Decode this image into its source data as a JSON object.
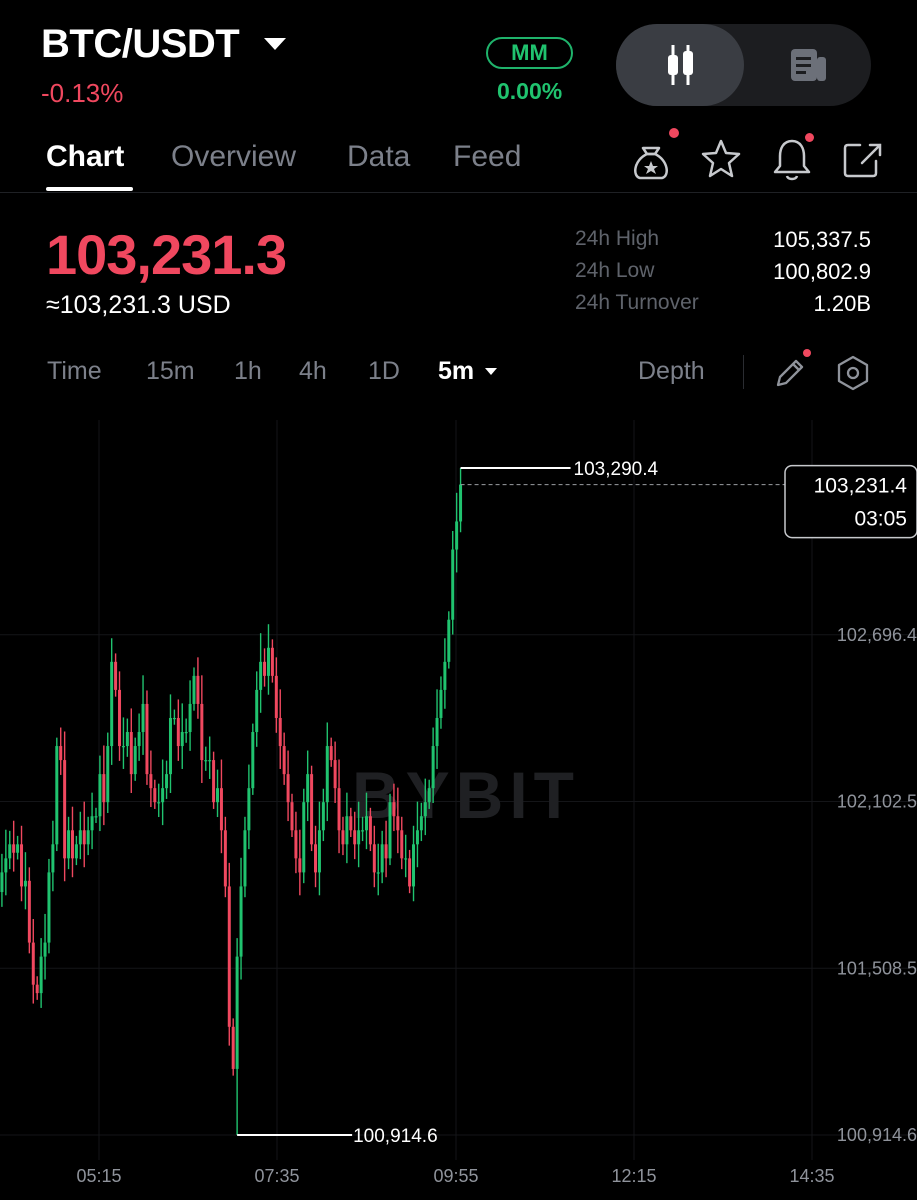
{
  "header": {
    "pair": "BTC/USDT",
    "change": "-0.13%",
    "mm_label": "MM",
    "mm_value": "0.00%"
  },
  "tabs": [
    "Chart",
    "Overview",
    "Data",
    "Feed"
  ],
  "price": {
    "last": "103,231.3",
    "usd": "≈103,231.3 USD"
  },
  "stats": [
    {
      "label": "24h High",
      "value": "105,337.5"
    },
    {
      "label": "24h Low",
      "value": "100,802.9"
    },
    {
      "label": "24h Turnover",
      "value": "1.20B"
    }
  ],
  "timeframes": [
    "Time",
    "15m",
    "1h",
    "4h",
    "1D",
    "5m"
  ],
  "depth_label": "Depth",
  "icons": {
    "toggle_left": "candlestick-icon",
    "toggle_right": "news-icon",
    "actions": [
      "reward-bag-icon",
      "star-icon",
      "bell-icon",
      "share-icon"
    ],
    "tools": [
      "pencil-icon",
      "settings-hex-icon"
    ]
  },
  "colors": {
    "up": "#20c36f",
    "down": "#f0485f",
    "background": "#000000"
  },
  "chart_data": {
    "type": "candlestick",
    "watermark": "BYBIT",
    "x_ticks": [
      "05:15",
      "07:35",
      "09:55",
      "12:15",
      "14:35"
    ],
    "y_ticks": [
      "100,914.6",
      "101,508.5",
      "102,102.5",
      "102,696.4"
    ],
    "ylim": [
      100914.6,
      103290.4
    ],
    "max_marker": "103,290.4",
    "min_marker": "100,914.6",
    "current_price": "103,231.4",
    "countdown": "03:05",
    "closes": [
      101780,
      101850,
      101900,
      101950,
      101920,
      101950,
      101800,
      101820,
      101600,
      101450,
      101420,
      101550,
      101600,
      101850,
      101950,
      102300,
      102250,
      101900,
      102000,
      101900,
      101950,
      102000,
      101950,
      102000,
      102050,
      102050,
      102200,
      102100,
      102300,
      102600,
      102500,
      102300,
      102300,
      102350,
      102200,
      102300,
      102350,
      102450,
      102200,
      102150,
      102100,
      102100,
      102150,
      102200,
      102400,
      102400,
      102300,
      102350,
      102350,
      102450,
      102550,
      102450,
      102250,
      102250,
      102250,
      102100,
      102150,
      102000,
      101800,
      101300,
      101150,
      101550,
      101800,
      102000,
      102150,
      102350,
      102500,
      102600,
      102550,
      102650,
      102550,
      102400,
      102300,
      102200,
      102100,
      102000,
      101900,
      101850,
      102100,
      102200,
      101950,
      101850,
      102000,
      102100,
      102300,
      102250,
      102150,
      102000,
      101950,
      102050,
      102000,
      101950,
      102000,
      102000,
      102050,
      101950,
      101850,
      101850,
      101950,
      101900,
      102100,
      102050,
      102000,
      101900,
      101900,
      101800,
      101950,
      102000,
      102050,
      102100,
      102150,
      102300,
      102400,
      102500,
      102600,
      102750,
      103000,
      103100,
      103231.4
    ]
  }
}
